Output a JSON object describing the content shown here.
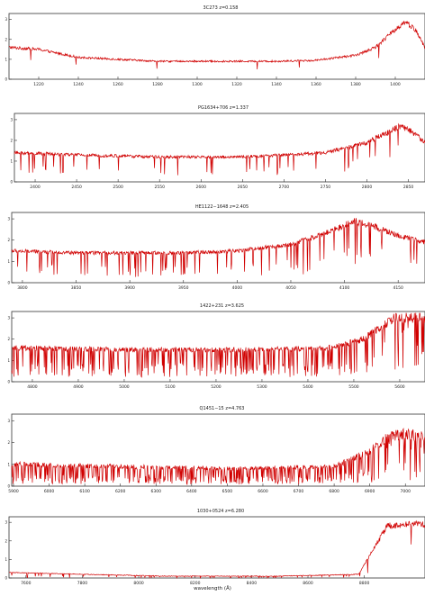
{
  "figure": {
    "xlabel": "wavelength (Å)"
  },
  "chart_data": [
    {
      "type": "line",
      "title": "3C273 z=0.158",
      "xlim": [
        1205,
        1415
      ],
      "ylim": [
        0,
        3.3
      ],
      "xticks": [
        1220,
        1240,
        1260,
        1280,
        1300,
        1320,
        1340,
        1360,
        1380,
        1400
      ],
      "yticks": [
        0,
        1,
        2,
        3
      ],
      "color": "#d00000",
      "profile": "ly_alpha_low_z",
      "x": [
        1205,
        1220,
        1240,
        1260,
        1280,
        1300,
        1320,
        1340,
        1360,
        1380,
        1390,
        1400,
        1405,
        1410,
        1415
      ],
      "y": [
        1.6,
        1.5,
        1.1,
        1.0,
        0.9,
        0.9,
        0.9,
        0.9,
        0.95,
        1.2,
        1.6,
        2.5,
        2.9,
        2.5,
        1.6
      ]
    },
    {
      "type": "line",
      "title": "PG1634+706 z=1.337",
      "xlim": [
        2375,
        2870
      ],
      "ylim": [
        0,
        3.3
      ],
      "xticks": [
        2400,
        2450,
        2500,
        2550,
        2600,
        2650,
        2700,
        2750,
        2800,
        2850
      ],
      "yticks": [
        0,
        1,
        2,
        3
      ],
      "color": "#d00000",
      "profile": "ly_alpha_forest_sparse",
      "x": [
        2375,
        2450,
        2550,
        2650,
        2750,
        2800,
        2825,
        2840,
        2855,
        2870
      ],
      "y": [
        1.4,
        1.3,
        1.2,
        1.2,
        1.4,
        1.9,
        2.4,
        2.7,
        2.4,
        1.9
      ]
    },
    {
      "type": "line",
      "title": "HE1122−1648 z=2.405",
      "xlim": [
        3790,
        4175
      ],
      "ylim": [
        0,
        3.3
      ],
      "xticks": [
        3800,
        3850,
        3900,
        3950,
        4000,
        4050,
        4100,
        4150
      ],
      "yticks": [
        0,
        1,
        2,
        3
      ],
      "color": "#d00000",
      "profile": "ly_alpha_forest_medium",
      "x": [
        3790,
        3850,
        3950,
        4000,
        4050,
        4080,
        4110,
        4130,
        4150,
        4175
      ],
      "y": [
        1.5,
        1.4,
        1.4,
        1.5,
        1.8,
        2.3,
        2.9,
        2.6,
        2.2,
        1.9
      ]
    },
    {
      "type": "line",
      "title": "1422+231 z=3.625",
      "xlim": [
        4755,
        5655
      ],
      "ylim": [
        0,
        3.3
      ],
      "xticks": [
        4800,
        4900,
        5000,
        5100,
        5200,
        5300,
        5400,
        5500,
        5600
      ],
      "yticks": [
        0,
        1,
        2,
        3
      ],
      "color": "#d00000",
      "profile": "ly_alpha_forest_dense",
      "x": [
        4755,
        5000,
        5300,
        5450,
        5520,
        5560,
        5590,
        5620,
        5655
      ],
      "y": [
        1.6,
        1.5,
        1.5,
        1.6,
        2.0,
        2.6,
        3.0,
        3.0,
        3.0
      ]
    },
    {
      "type": "line",
      "title": "Q1451−15 z=4.763",
      "xlim": [
        5895,
        7055
      ],
      "ylim": [
        0,
        3.3
      ],
      "xticks": [
        5900,
        6000,
        6100,
        6200,
        6300,
        6400,
        6500,
        6600,
        6700,
        6800,
        6900,
        7000
      ],
      "yticks": [
        0,
        1,
        2,
        3
      ],
      "color": "#d00000",
      "profile": "ly_alpha_forest_very_dense",
      "x": [
        5895,
        6200,
        6500,
        6800,
        6900,
        6950,
        7000,
        7055
      ],
      "y": [
        1.0,
        0.9,
        0.8,
        0.9,
        1.6,
        2.3,
        2.4,
        2.2
      ]
    },
    {
      "type": "line",
      "title": "1030+0524 z=6.280",
      "xlim": [
        7540,
        9015
      ],
      "ylim": [
        0,
        3.3
      ],
      "xticks": [
        7600,
        7800,
        8000,
        8200,
        8400,
        8600,
        8800
      ],
      "yticks": [
        0,
        1,
        2,
        3
      ],
      "color": "#d00000",
      "profile": "gunn_peterson_trough",
      "x": [
        7540,
        7800,
        8100,
        8500,
        8780,
        8830,
        8880,
        8950,
        9015
      ],
      "y": [
        0.3,
        0.2,
        0.1,
        0.1,
        0.2,
        1.5,
        2.8,
        2.9,
        2.9
      ]
    }
  ]
}
